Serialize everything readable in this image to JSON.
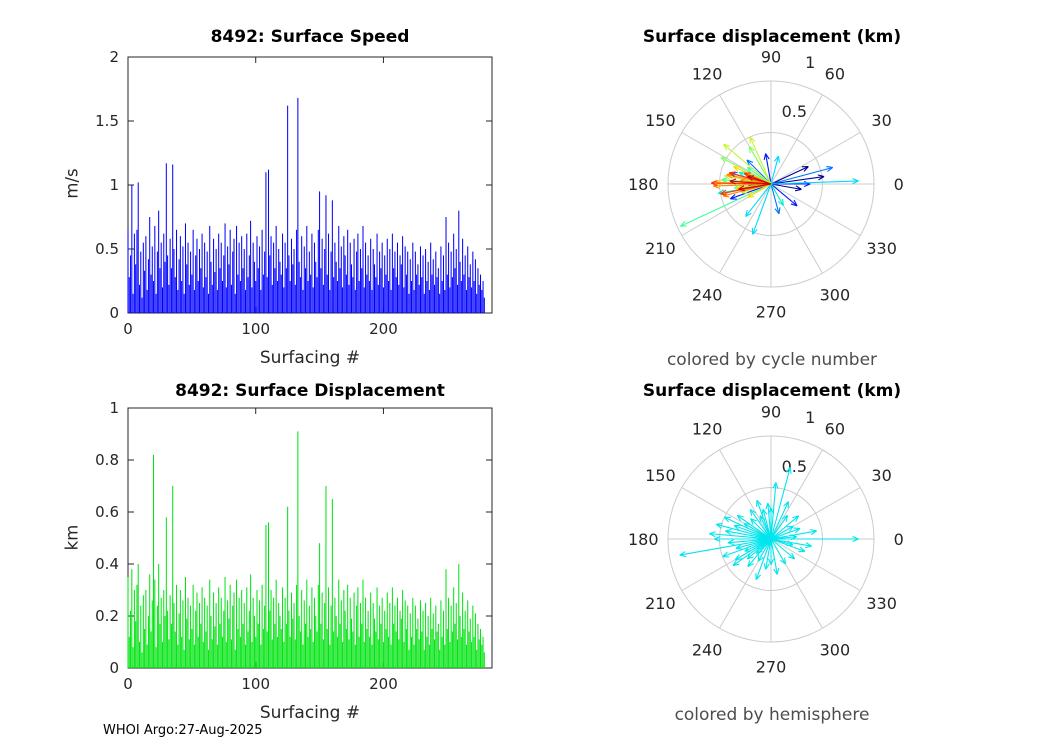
{
  "figure": {
    "footer": "WHOI Argo:27-Aug-2025",
    "background": "#ffffff"
  },
  "chart_data": [
    {
      "id": "speed_bar",
      "type": "bar",
      "title": "8492: Surface Speed",
      "xlabel": "Surfacing #",
      "ylabel": "m/s",
      "xlim": [
        0,
        285
      ],
      "ylim": [
        0,
        2
      ],
      "xticks": [
        0,
        100,
        200
      ],
      "yticks": [
        0,
        0.5,
        1,
        1.5,
        2
      ],
      "grid": false,
      "bar_color": "#0000ff",
      "values": [
        0.65,
        0.28,
        0.45,
        1.0,
        0.15,
        0.62,
        0.38,
        0.65,
        1.02,
        0.22,
        0.48,
        0.12,
        0.55,
        0.33,
        0.6,
        0.18,
        0.42,
        0.75,
        0.3,
        0.52,
        0.25,
        0.68,
        0.15,
        0.48,
        0.8,
        0.35,
        0.55,
        0.2,
        0.62,
        0.4,
        1.17,
        0.45,
        0.22,
        0.58,
        0.35,
        1.16,
        0.5,
        0.28,
        0.65,
        0.18,
        0.42,
        0.6,
        0.25,
        0.52,
        0.15,
        0.7,
        0.38,
        0.55,
        0.22,
        0.48,
        0.3,
        0.65,
        0.18,
        0.45,
        0.58,
        0.25,
        0.5,
        0.35,
        0.62,
        0.2,
        0.55,
        0.28,
        0.48,
        0.15,
        0.68,
        0.4,
        0.22,
        0.58,
        0.32,
        0.5,
        0.18,
        0.62,
        0.35,
        0.55,
        0.25,
        0.45,
        0.7,
        0.2,
        0.52,
        0.38,
        0.65,
        0.22,
        0.48,
        0.58,
        0.15,
        0.68,
        0.3,
        0.55,
        0.25,
        0.6,
        0.35,
        0.5,
        0.18,
        0.62,
        0.28,
        0.45,
        0.72,
        0.2,
        0.55,
        0.4,
        0.25,
        0.6,
        0.35,
        0.52,
        0.18,
        0.65,
        0.3,
        0.48,
        1.1,
        0.28,
        1.12,
        0.45,
        0.6,
        0.22,
        0.55,
        0.35,
        0.68,
        0.25,
        0.5,
        0.4,
        0.3,
        0.62,
        0.2,
        0.55,
        0.35,
        1.62,
        0.45,
        0.25,
        0.58,
        0.38,
        0.5,
        0.22,
        0.65,
        1.68,
        0.4,
        0.28,
        0.6,
        0.18,
        0.52,
        0.35,
        0.68,
        0.25,
        0.48,
        0.3,
        0.62,
        0.2,
        0.55,
        0.4,
        0.28,
        0.65,
        0.95,
        0.35,
        0.58,
        0.22,
        0.5,
        0.92,
        0.3,
        0.62,
        0.18,
        0.48,
        0.88,
        0.28,
        0.55,
        0.4,
        0.25,
        0.68,
        0.35,
        0.52,
        0.2,
        0.6,
        0.45,
        0.3,
        0.65,
        0.22,
        0.55,
        0.38,
        0.28,
        0.58,
        0.18,
        0.48,
        0.62,
        0.25,
        0.5,
        0.35,
        0.68,
        0.2,
        0.55,
        0.3,
        0.45,
        0.25,
        0.58,
        0.18,
        0.5,
        0.38,
        0.28,
        0.62,
        0.22,
        0.48,
        0.35,
        0.55,
        0.2,
        0.45,
        0.3,
        0.58,
        0.25,
        0.5,
        0.18,
        0.62,
        0.35,
        0.48,
        0.28,
        0.55,
        0.22,
        0.45,
        0.38,
        0.6,
        0.2,
        0.52,
        0.3,
        0.48,
        0.15,
        0.42,
        0.25,
        0.55,
        0.18,
        0.48,
        0.3,
        0.38,
        0.22,
        0.52,
        0.28,
        0.45,
        0.15,
        0.5,
        0.25,
        0.4,
        0.18,
        0.55,
        0.3,
        0.42,
        0.22,
        0.48,
        0.28,
        0.35,
        0.15,
        0.52,
        0.25,
        0.45,
        0.18,
        0.75,
        0.3,
        0.55,
        0.2,
        0.48,
        0.28,
        0.62,
        0.35,
        0.5,
        0.22,
        0.8,
        0.4,
        0.25,
        0.58,
        0.3,
        0.45,
        0.18,
        0.52,
        0.28,
        0.38,
        0.2,
        0.48,
        0.25,
        0.42,
        0.15,
        0.35,
        0.22,
        0.3,
        0.18,
        0.25,
        0.12
      ]
    },
    {
      "id": "polar_cycle",
      "type": "polar_quiver",
      "title": "Surface displacement (km)",
      "caption": "colored by cycle number",
      "rlim": [
        0,
        1
      ],
      "radial_ticks": [
        0.5,
        1
      ],
      "radial_tick_labels": [
        "0.5",
        "1"
      ],
      "angle_ticks": [
        0,
        30,
        60,
        90,
        120,
        150,
        180,
        210,
        240,
        270,
        300,
        330
      ],
      "colormap": "jet",
      "arrows": [
        {
          "a": 8,
          "r": 0.52,
          "c": "#000090"
        },
        {
          "a": 350,
          "r": 0.3,
          "c": "#000090"
        },
        {
          "a": 25,
          "r": 0.4,
          "c": "#000090"
        },
        {
          "a": 185,
          "r": 0.22,
          "c": "#000090"
        },
        {
          "a": 0,
          "r": 0.38,
          "c": "#0018ff"
        },
        {
          "a": 200,
          "r": 0.42,
          "c": "#0018ff"
        },
        {
          "a": 320,
          "r": 0.33,
          "c": "#0018ff"
        },
        {
          "a": 100,
          "r": 0.3,
          "c": "#0018ff"
        },
        {
          "a": 165,
          "r": 0.4,
          "c": "#0070ff"
        },
        {
          "a": 15,
          "r": 0.62,
          "c": "#0070ff"
        },
        {
          "a": 285,
          "r": 0.3,
          "c": "#0070ff"
        },
        {
          "a": 135,
          "r": 0.33,
          "c": "#0070ff"
        },
        {
          "a": 2,
          "r": 0.85,
          "c": "#00d8ff"
        },
        {
          "a": 250,
          "r": 0.52,
          "c": "#00d8ff"
        },
        {
          "a": 232,
          "r": 0.4,
          "c": "#00d8ff"
        },
        {
          "a": 75,
          "r": 0.28,
          "c": "#00d8ff"
        },
        {
          "a": 190,
          "r": 0.52,
          "c": "#00f0d0"
        },
        {
          "a": 160,
          "r": 0.33,
          "c": "#00f0d0"
        },
        {
          "a": 300,
          "r": 0.24,
          "c": "#00f0d0"
        },
        {
          "a": 205,
          "r": 0.97,
          "c": "#40ff9a"
        },
        {
          "a": 175,
          "r": 0.48,
          "c": "#40ff9a"
        },
        {
          "a": 145,
          "r": 0.28,
          "c": "#40ff9a"
        },
        {
          "a": 152,
          "r": 0.55,
          "c": "#80ff60"
        },
        {
          "a": 120,
          "r": 0.42,
          "c": "#80ff60"
        },
        {
          "a": 186,
          "r": 0.36,
          "c": "#80ff60"
        },
        {
          "a": 170,
          "r": 0.46,
          "c": "#c8f433"
        },
        {
          "a": 140,
          "r": 0.6,
          "c": "#c8f433"
        },
        {
          "a": 196,
          "r": 0.3,
          "c": "#c8f433"
        },
        {
          "a": 114,
          "r": 0.5,
          "c": "#c8f433"
        },
        {
          "a": 178,
          "r": 0.54,
          "c": "#ffd500"
        },
        {
          "a": 155,
          "r": 0.4,
          "c": "#ffd500"
        },
        {
          "a": 188,
          "r": 0.34,
          "c": "#ffd500"
        },
        {
          "a": 210,
          "r": 0.26,
          "c": "#ffd500"
        },
        {
          "a": 182,
          "r": 0.56,
          "c": "#ff8800"
        },
        {
          "a": 168,
          "r": 0.44,
          "c": "#ff8800"
        },
        {
          "a": 194,
          "r": 0.48,
          "c": "#ff8800"
        },
        {
          "a": 173,
          "r": 0.3,
          "c": "#ff8800"
        },
        {
          "a": 179,
          "r": 0.58,
          "c": "#ff3300"
        },
        {
          "a": 165,
          "r": 0.42,
          "c": "#ff3300"
        },
        {
          "a": 191,
          "r": 0.5,
          "c": "#ff3300"
        },
        {
          "a": 158,
          "r": 0.28,
          "c": "#ff3300"
        },
        {
          "a": 176,
          "r": 0.4,
          "c": "#c80000"
        },
        {
          "a": 189,
          "r": 0.32,
          "c": "#c80000"
        },
        {
          "a": 162,
          "r": 0.24,
          "c": "#c80000"
        }
      ]
    },
    {
      "id": "disp_bar",
      "type": "bar",
      "title": "8492: Surface Displacement",
      "xlabel": "Surfacing #",
      "ylabel": "km",
      "xlim": [
        0,
        285
      ],
      "ylim": [
        0,
        1
      ],
      "xticks": [
        0,
        100,
        200
      ],
      "yticks": [
        0,
        0.2,
        0.4,
        0.6,
        0.8,
        1
      ],
      "grid": false,
      "bar_color": "#00e411",
      "values": [
        0.35,
        0.12,
        0.22,
        0.38,
        0.08,
        0.3,
        0.18,
        0.32,
        0.4,
        0.1,
        0.24,
        0.06,
        0.28,
        0.15,
        0.3,
        0.09,
        0.2,
        0.36,
        0.14,
        0.26,
        0.82,
        0.34,
        0.08,
        0.24,
        0.4,
        0.17,
        0.27,
        0.1,
        0.3,
        0.2,
        0.58,
        0.22,
        0.11,
        0.28,
        0.17,
        0.7,
        0.25,
        0.14,
        0.32,
        0.09,
        0.21,
        0.3,
        0.12,
        0.26,
        0.07,
        0.35,
        0.19,
        0.27,
        0.11,
        0.24,
        0.15,
        0.32,
        0.09,
        0.22,
        0.29,
        0.12,
        0.25,
        0.17,
        0.31,
        0.1,
        0.27,
        0.14,
        0.24,
        0.07,
        0.34,
        0.2,
        0.11,
        0.29,
        0.16,
        0.25,
        0.09,
        0.31,
        0.17,
        0.27,
        0.12,
        0.22,
        0.35,
        0.1,
        0.26,
        0.19,
        0.32,
        0.11,
        0.24,
        0.29,
        0.07,
        0.34,
        0.15,
        0.27,
        0.12,
        0.3,
        0.17,
        0.25,
        0.09,
        0.31,
        0.14,
        0.22,
        0.36,
        0.1,
        0.27,
        0.2,
        0.12,
        0.3,
        0.17,
        0.26,
        0.09,
        0.32,
        0.15,
        0.24,
        0.55,
        0.14,
        0.56,
        0.22,
        0.3,
        0.11,
        0.27,
        0.17,
        0.34,
        0.12,
        0.25,
        0.2,
        0.15,
        0.31,
        0.1,
        0.27,
        0.17,
        0.62,
        0.22,
        0.12,
        0.29,
        0.19,
        0.25,
        0.11,
        0.32,
        0.91,
        0.2,
        0.14,
        0.3,
        0.09,
        0.26,
        0.17,
        0.34,
        0.12,
        0.24,
        0.15,
        0.31,
        0.1,
        0.27,
        0.2,
        0.14,
        0.32,
        0.48,
        0.17,
        0.29,
        0.11,
        0.25,
        0.7,
        0.15,
        0.31,
        0.09,
        0.24,
        0.65,
        0.14,
        0.27,
        0.2,
        0.12,
        0.34,
        0.17,
        0.26,
        0.1,
        0.3,
        0.22,
        0.15,
        0.32,
        0.11,
        0.27,
        0.19,
        0.14,
        0.29,
        0.09,
        0.24,
        0.31,
        0.12,
        0.25,
        0.17,
        0.34,
        0.1,
        0.27,
        0.15,
        0.22,
        0.12,
        0.29,
        0.09,
        0.25,
        0.19,
        0.14,
        0.31,
        0.11,
        0.24,
        0.17,
        0.27,
        0.1,
        0.22,
        0.15,
        0.29,
        0.12,
        0.25,
        0.09,
        0.31,
        0.17,
        0.24,
        0.14,
        0.27,
        0.11,
        0.22,
        0.19,
        0.3,
        0.1,
        0.26,
        0.15,
        0.24,
        0.07,
        0.21,
        0.12,
        0.27,
        0.09,
        0.24,
        0.15,
        0.19,
        0.11,
        0.26,
        0.14,
        0.22,
        0.07,
        0.25,
        0.12,
        0.2,
        0.09,
        0.27,
        0.15,
        0.21,
        0.11,
        0.24,
        0.14,
        0.17,
        0.07,
        0.26,
        0.12,
        0.22,
        0.09,
        0.38,
        0.15,
        0.27,
        0.1,
        0.24,
        0.14,
        0.31,
        0.17,
        0.25,
        0.11,
        0.4,
        0.2,
        0.12,
        0.29,
        0.15,
        0.22,
        0.09,
        0.26,
        0.14,
        0.19,
        0.1,
        0.24,
        0.12,
        0.21,
        0.07,
        0.17,
        0.11,
        0.15,
        0.09,
        0.12,
        0.06
      ]
    },
    {
      "id": "polar_hemi",
      "type": "polar_quiver",
      "title": "Surface displacement (km)",
      "caption": "colored by hemisphere",
      "rlim": [
        0,
        1
      ],
      "radial_ticks": [
        0.5,
        1
      ],
      "radial_tick_labels": [
        "0.5",
        "1"
      ],
      "angle_ticks": [
        0,
        30,
        60,
        90,
        120,
        150,
        180,
        210,
        240,
        270,
        300,
        330
      ],
      "arrow_color": "#00e5ee",
      "arrows": [
        {
          "a": 190,
          "r": 0.9
        },
        {
          "a": 0,
          "r": 0.85
        },
        {
          "a": 75,
          "r": 0.72
        },
        {
          "a": 85,
          "r": 0.55
        },
        {
          "a": 180,
          "r": 0.55
        },
        {
          "a": 170,
          "r": 0.45
        },
        {
          "a": 200,
          "r": 0.5
        },
        {
          "a": 160,
          "r": 0.38
        },
        {
          "a": 150,
          "r": 0.3
        },
        {
          "a": 210,
          "r": 0.4
        },
        {
          "a": 220,
          "r": 0.3
        },
        {
          "a": 230,
          "r": 0.35
        },
        {
          "a": 240,
          "r": 0.25
        },
        {
          "a": 250,
          "r": 0.42
        },
        {
          "a": 260,
          "r": 0.3
        },
        {
          "a": 270,
          "r": 0.25
        },
        {
          "a": 280,
          "r": 0.35
        },
        {
          "a": 300,
          "r": 0.28
        },
        {
          "a": 320,
          "r": 0.3
        },
        {
          "a": 340,
          "r": 0.35
        },
        {
          "a": 350,
          "r": 0.4
        },
        {
          "a": 10,
          "r": 0.45
        },
        {
          "a": 20,
          "r": 0.3
        },
        {
          "a": 30,
          "r": 0.25
        },
        {
          "a": 40,
          "r": 0.35
        },
        {
          "a": 55,
          "r": 0.28
        },
        {
          "a": 65,
          "r": 0.4
        },
        {
          "a": 95,
          "r": 0.35
        },
        {
          "a": 105,
          "r": 0.3
        },
        {
          "a": 115,
          "r": 0.25
        },
        {
          "a": 125,
          "r": 0.35
        },
        {
          "a": 135,
          "r": 0.28
        },
        {
          "a": 145,
          "r": 0.4
        },
        {
          "a": 155,
          "r": 0.5
        },
        {
          "a": 165,
          "r": 0.55
        },
        {
          "a": 175,
          "r": 0.6
        },
        {
          "a": 185,
          "r": 0.42
        },
        {
          "a": 195,
          "r": 0.35
        },
        {
          "a": 205,
          "r": 0.28
        },
        {
          "a": 215,
          "r": 0.45
        },
        {
          "a": 5,
          "r": 0.25
        },
        {
          "a": 345,
          "r": 0.22
        },
        {
          "a": 90,
          "r": 0.3
        },
        {
          "a": 110,
          "r": 0.4
        },
        {
          "a": 225,
          "r": 0.2
        }
      ]
    }
  ]
}
